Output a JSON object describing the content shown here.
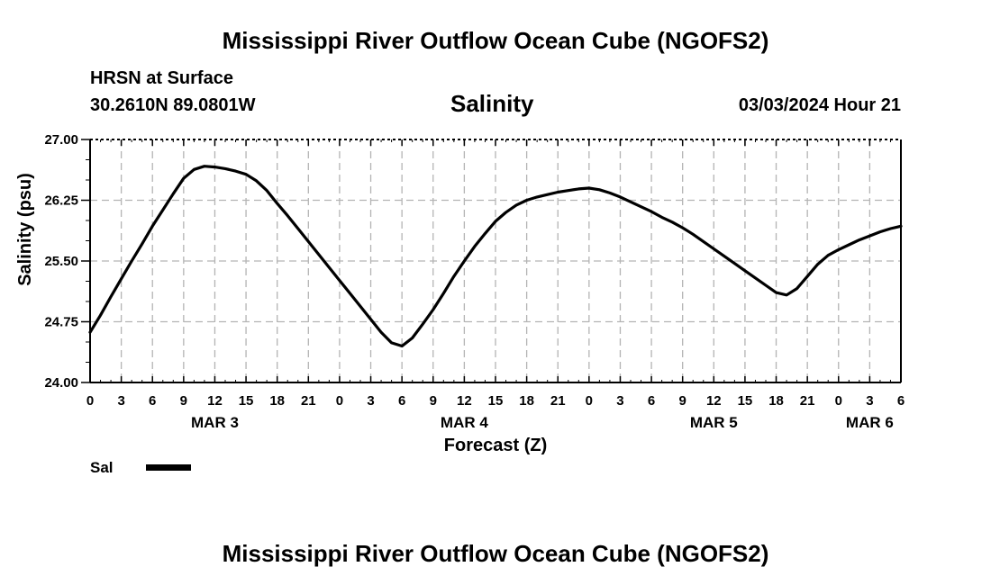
{
  "header": {
    "title": "Mississippi River Outflow Ocean Cube (NGOFS2)",
    "station": "HRSN at Surface",
    "coords": "30.2610N  89.0801W",
    "subtitle": "Salinity",
    "forecast_time": "03/03/2024 Hour 21"
  },
  "legend": {
    "label": "Sal"
  },
  "footer": {
    "title": "Mississippi River Outflow Ocean Cube (NGOFS2)"
  },
  "chart_data": {
    "type": "line",
    "title": "Salinity",
    "xlabel": "Forecast (Z)",
    "ylabel": "Salinity (psu)",
    "x_unit": "hours since MAR 3 00Z",
    "xlim": [
      0,
      78
    ],
    "ylim": [
      24.0,
      27.0
    ],
    "grid": true,
    "yticks": [
      "24.00",
      "24.75",
      "25.50",
      "26.25",
      "27.00"
    ],
    "ytick_values": [
      24.0,
      24.75,
      25.5,
      26.25,
      27.0
    ],
    "xtick_labels": [
      "0",
      "3",
      "6",
      "9",
      "12",
      "15",
      "18",
      "21",
      "0",
      "3",
      "6",
      "9",
      "12",
      "15",
      "18",
      "21",
      "0",
      "3",
      "6",
      "9",
      "12",
      "15",
      "18",
      "21",
      "0",
      "3",
      "6"
    ],
    "day_labels": [
      {
        "label": "MAR 3",
        "hour": 12
      },
      {
        "label": "MAR 4",
        "hour": 36
      },
      {
        "label": "MAR 5",
        "hour": 60
      },
      {
        "label": "MAR 6",
        "hour": 75
      }
    ],
    "legend": "bottom-left",
    "series": [
      {
        "name": "Sal",
        "x": [
          0,
          1,
          2,
          3,
          4,
          5,
          6,
          7,
          8,
          9,
          10,
          11,
          12,
          13,
          14,
          15,
          16,
          17,
          18,
          19,
          20,
          21,
          22,
          23,
          24,
          25,
          26,
          27,
          28,
          29,
          30,
          31,
          32,
          33,
          34,
          35,
          36,
          37,
          38,
          39,
          40,
          41,
          42,
          43,
          44,
          45,
          46,
          47,
          48,
          49,
          50,
          51,
          52,
          53,
          54,
          55,
          56,
          57,
          58,
          59,
          60,
          61,
          62,
          63,
          64,
          65,
          66,
          67,
          68,
          69,
          70,
          71,
          72,
          73,
          74,
          75,
          76,
          77,
          78
        ],
        "values": [
          24.62,
          24.83,
          25.06,
          25.28,
          25.5,
          25.71,
          25.93,
          26.13,
          26.33,
          26.52,
          26.63,
          26.67,
          26.66,
          26.64,
          26.61,
          26.57,
          26.49,
          26.37,
          26.21,
          26.06,
          25.9,
          25.74,
          25.58,
          25.42,
          25.26,
          25.1,
          24.94,
          24.78,
          24.62,
          24.49,
          24.45,
          24.55,
          24.72,
          24.9,
          25.1,
          25.31,
          25.5,
          25.68,
          25.84,
          25.99,
          26.1,
          26.19,
          26.25,
          26.29,
          26.32,
          26.35,
          26.37,
          26.39,
          26.4,
          26.38,
          26.34,
          26.29,
          26.23,
          26.17,
          26.11,
          26.04,
          25.98,
          25.91,
          25.83,
          25.74,
          25.65,
          25.56,
          25.47,
          25.38,
          25.29,
          25.2,
          25.11,
          25.08,
          25.16,
          25.31,
          25.46,
          25.57,
          25.64,
          25.7,
          25.76,
          25.81,
          25.86,
          25.9,
          25.93
        ]
      }
    ]
  }
}
